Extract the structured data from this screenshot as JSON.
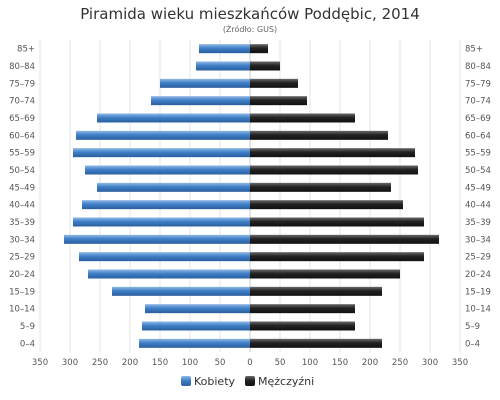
{
  "chart_data": {
    "type": "bar",
    "orientation": "horizontal",
    "title": "Piramida wieku mieszkańców Poddębic, 2014",
    "subtitle": "(Źródło: GUS)",
    "categories": [
      "85+",
      "80–84",
      "75–79",
      "70–74",
      "65–69",
      "60–64",
      "55–59",
      "50–54",
      "45–49",
      "40–44",
      "35–39",
      "30–34",
      "25–29",
      "20–24",
      "15–19",
      "10–14",
      "5–9",
      "0–4"
    ],
    "series": [
      {
        "name": "Kobiety",
        "color": "#3f7fc6",
        "values": [
          85,
          90,
          150,
          165,
          255,
          290,
          295,
          275,
          255,
          280,
          295,
          310,
          285,
          270,
          230,
          175,
          180,
          185
        ]
      },
      {
        "name": "Mężczyźni",
        "color": "#222222",
        "values": [
          30,
          50,
          80,
          95,
          175,
          230,
          275,
          280,
          235,
          255,
          290,
          315,
          290,
          250,
          220,
          175,
          175,
          220
        ]
      }
    ],
    "x_ticks": [
      350,
      300,
      250,
      200,
      150,
      100,
      50,
      0,
      50,
      100,
      150,
      200,
      250,
      300,
      350
    ],
    "xlim": [
      -350,
      350
    ],
    "grid": true,
    "legend_position": "bottom"
  }
}
